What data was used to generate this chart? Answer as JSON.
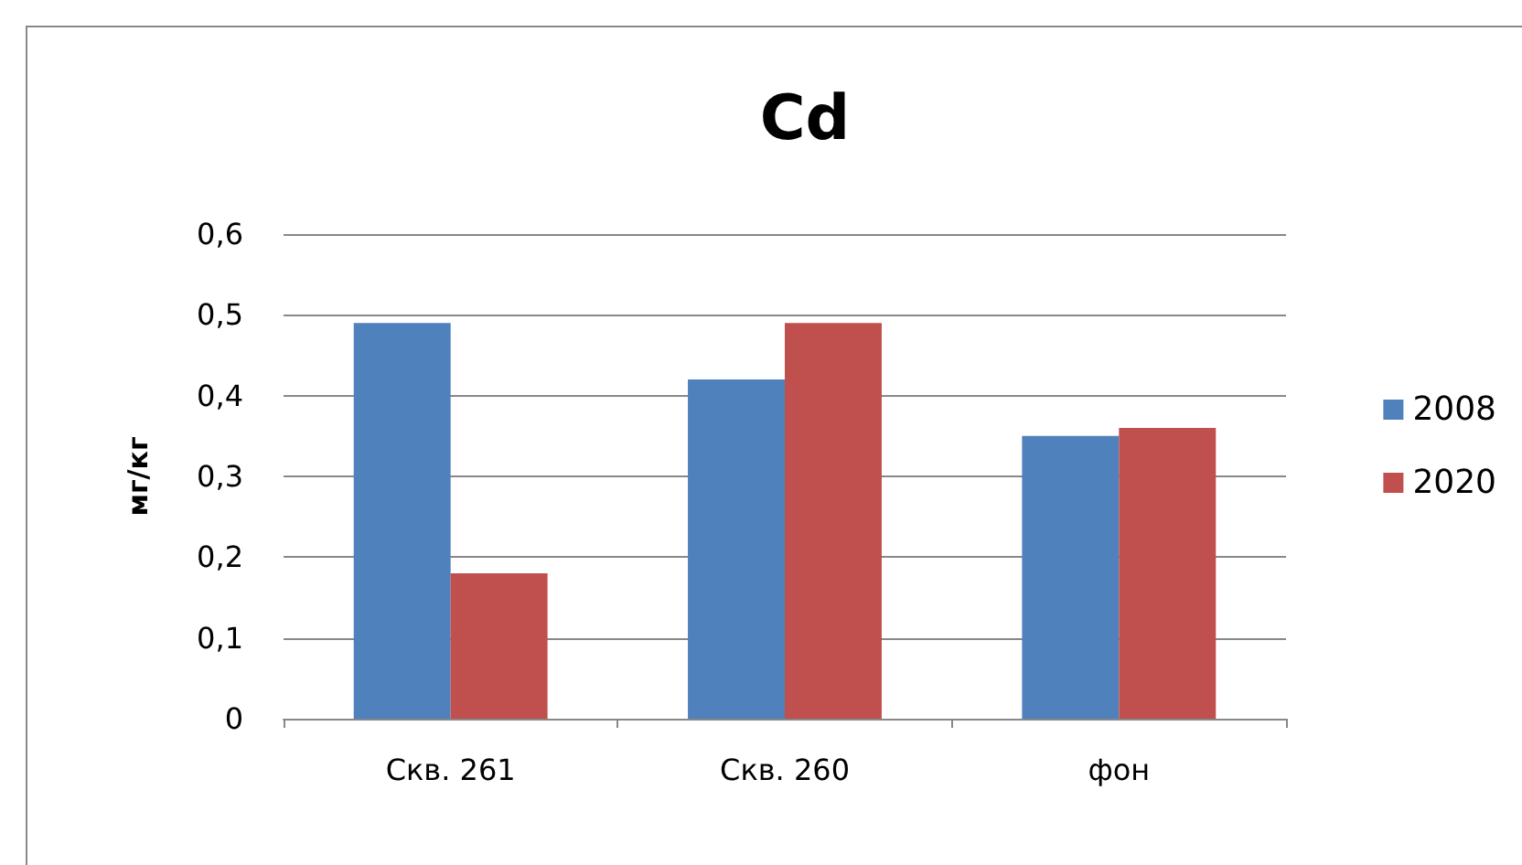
{
  "chart_data": {
    "type": "bar",
    "title": "Cd",
    "ylabel": "мг/кг",
    "categories": [
      "Скв. 261",
      "Скв. 260",
      "фон"
    ],
    "series": [
      {
        "name": "2008",
        "color": "#4f81bd",
        "values": [
          0.49,
          0.42,
          0.35
        ]
      },
      {
        "name": "2020",
        "color": "#c0504d",
        "values": [
          0.18,
          0.49,
          0.36
        ]
      }
    ],
    "ylim": [
      0,
      0.6
    ],
    "yticks": [
      0,
      {
        "value": 0.1,
        "label": "0,1"
      },
      {
        "value": 0.2,
        "label": "0,2"
      },
      {
        "value": 0.3,
        "label": "0,3"
      },
      {
        "value": 0.4,
        "label": "0,4"
      },
      {
        "value": 0.5,
        "label": "0,5"
      },
      {
        "value": 0.6,
        "label": "0,6"
      }
    ],
    "grid": "y",
    "legend": "right"
  }
}
